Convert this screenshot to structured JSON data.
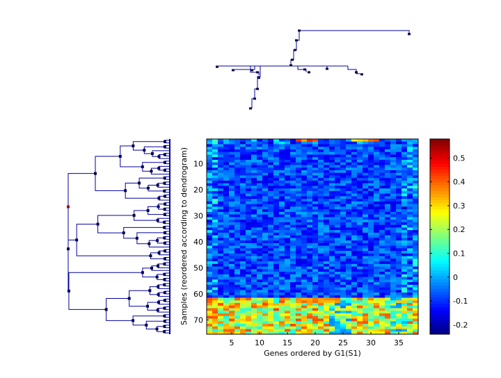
{
  "chart_data": {
    "type": "heatmap",
    "title": "",
    "xlabel": "Genes ordered by G1(S1)",
    "ylabel": "Samples (reordered according to dendrogram)",
    "x_ticks": [
      5,
      10,
      15,
      20,
      25,
      30,
      35
    ],
    "y_ticks": [
      10,
      20,
      30,
      40,
      50,
      60,
      70
    ],
    "xlim": [
      0.5,
      38.5
    ],
    "ylim": [
      0.5,
      75.5
    ],
    "n_genes": 38,
    "n_samples": 75,
    "colormap": "jet",
    "colorbar": {
      "range": [
        -0.24,
        0.58
      ],
      "ticks": [
        -0.2,
        -0.1,
        0,
        0.1,
        0.2,
        0.3,
        0.4,
        0.5
      ],
      "tick_labels": [
        "-0.2",
        "-0.1",
        "0",
        "0.1",
        "0.2",
        "0.3",
        "0.4",
        "0.5"
      ]
    },
    "approximate_pattern": {
      "background": -0.08,
      "high_band_rows": [
        62,
        75
      ],
      "high_band_value": 0.25,
      "top_row_hotspots": [
        17,
        18,
        19,
        20,
        27,
        28,
        29,
        30,
        31
      ],
      "left_and_right_columns_warmer": [
        1,
        2,
        36,
        37,
        38
      ],
      "row_62_63_hotspot_genes": [
        17,
        18,
        19,
        20,
        21,
        22,
        23,
        24
      ]
    },
    "dendrograms": [
      "sample dendrogram (left)",
      "gene dendrogram (top)"
    ]
  }
}
